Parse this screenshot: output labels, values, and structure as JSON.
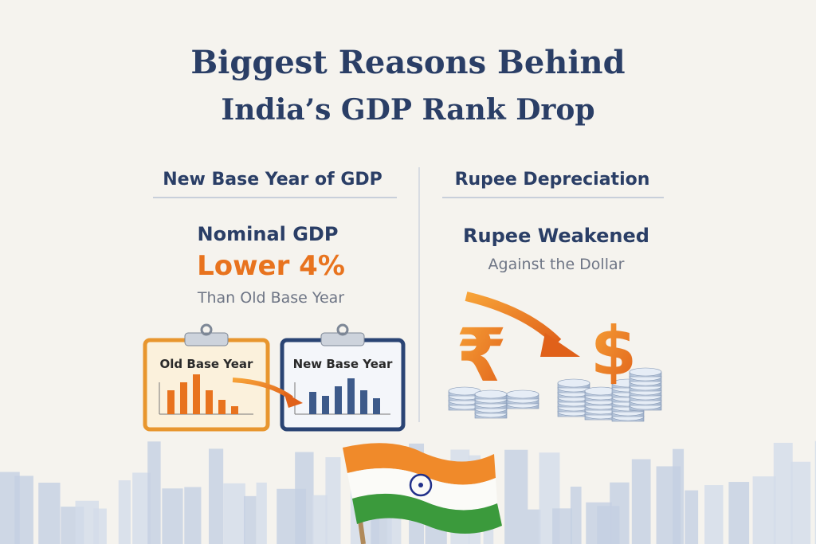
{
  "header": {
    "title_line1": "Biggest Reasons Behind",
    "title_line2": "India’s GDP Rank Drop"
  },
  "left": {
    "heading": "New Base Year of GDP",
    "line1": "Nominal GDP",
    "highlight": "Lower 4%",
    "line3": "Than Old Base Year",
    "old_card": "Old Base Year",
    "new_card": "New Base Year"
  },
  "right": {
    "heading": "Rupee Depreciation",
    "line1": "Rupee Weakened",
    "line2": "Against the Dollar",
    "rupee_symbol": "₹",
    "dollar_symbol": "$"
  }
}
